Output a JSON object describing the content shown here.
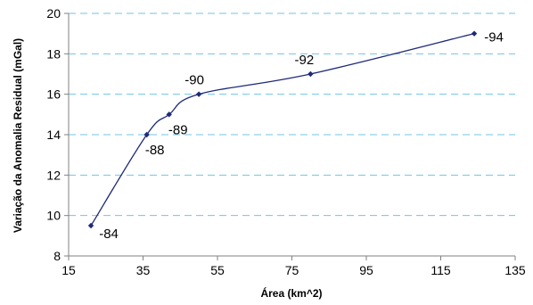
{
  "chart_data": {
    "type": "line",
    "title": "",
    "xlabel": "Área (km^2)",
    "ylabel": "Variação da Anomalia Residual (mGal)",
    "xlim": [
      15,
      135
    ],
    "ylim": [
      8,
      20
    ],
    "x_ticks": [
      "15",
      "35",
      "55",
      "75",
      "95",
      "115",
      "135"
    ],
    "y_ticks": [
      "8",
      "10",
      "12",
      "14",
      "16",
      "18",
      "20"
    ],
    "grid": "horizontal dashed",
    "series": [
      {
        "points": [
          {
            "x": 21,
            "y": 9.5,
            "label": "-84"
          },
          {
            "x": 36,
            "y": 14,
            "label": "-88"
          },
          {
            "x": 42,
            "y": 15,
            "label": "-89"
          },
          {
            "x": 50,
            "y": 16,
            "label": "-90"
          },
          {
            "x": 80,
            "y": 17,
            "label": "-92"
          },
          {
            "x": 124,
            "y": 19,
            "label": "-94"
          }
        ]
      }
    ],
    "colors": {
      "line": "#1f2a78",
      "gridline": "#6fc6e6",
      "axis": "#808080"
    }
  }
}
